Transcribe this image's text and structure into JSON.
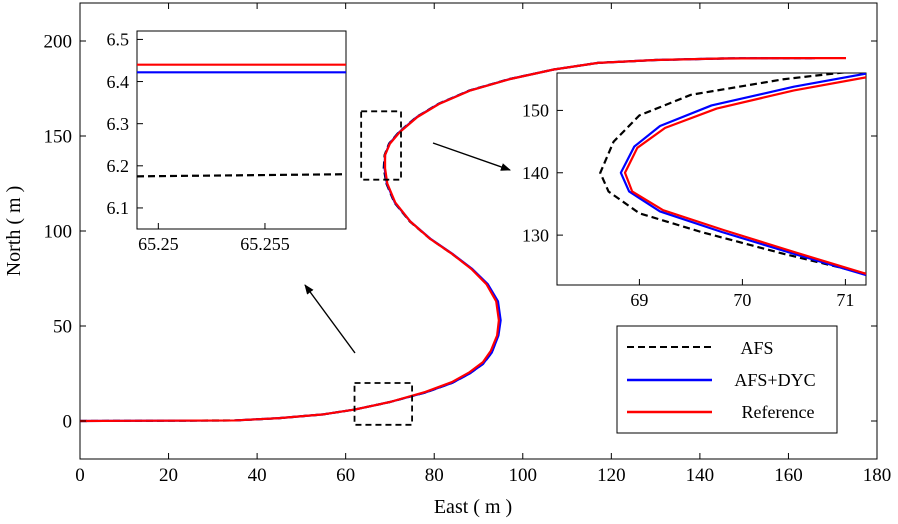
{
  "chart_data": [
    {
      "type": "line",
      "xlabel": "East ( m )",
      "ylabel": "North ( m )",
      "xlim": [
        0,
        180
      ],
      "ylim": [
        -20,
        220
      ],
      "xticks": [
        0,
        20,
        40,
        60,
        80,
        100,
        120,
        140,
        160,
        180
      ],
      "yticks": [
        0,
        50,
        100,
        150,
        200
      ],
      "grid": false,
      "legend_position": "bottom-right",
      "series": [
        {
          "name": "AFS",
          "color": "#000000",
          "style": "dashed",
          "points": [
            [
              0,
              0
            ],
            [
              35,
              0.3
            ],
            [
              45,
              1.5
            ],
            [
              55,
              3.5
            ],
            [
              62,
              6
            ],
            [
              70,
              10
            ],
            [
              78,
              15
            ],
            [
              84,
              20
            ],
            [
              88,
              25
            ],
            [
              91,
              30
            ],
            [
              93,
              36
            ],
            [
              94.4,
              45
            ],
            [
              94.9,
              53
            ],
            [
              94.3,
              63
            ],
            [
              92,
              72
            ],
            [
              88.5,
              80
            ],
            [
              84,
              88
            ],
            [
              79,
              96
            ],
            [
              74.5,
              105
            ],
            [
              71,
              115
            ],
            [
              69.2,
              125
            ],
            [
              68.6,
              133
            ],
            [
              68.8,
              140
            ],
            [
              69.8,
              146
            ],
            [
              72,
              152
            ],
            [
              76,
              160
            ],
            [
              81,
              167
            ],
            [
              88,
              174
            ],
            [
              97,
              180
            ],
            [
              107,
              185
            ],
            [
              117,
              188.5
            ],
            [
              130,
              190
            ],
            [
              145,
              190.8
            ],
            [
              160,
              191
            ],
            [
              166,
              191
            ]
          ]
        },
        {
          "name": "AFS+DYC",
          "color": "#0000ff",
          "style": "solid",
          "points": [
            [
              0,
              0
            ],
            [
              35,
              0.3
            ],
            [
              45,
              1.5
            ],
            [
              55,
              3.5
            ],
            [
              62,
              6
            ],
            [
              70,
              10
            ],
            [
              78,
              15
            ],
            [
              84,
              20
            ],
            [
              88,
              25
            ],
            [
              91,
              30
            ],
            [
              93,
              36
            ],
            [
              94.5,
              45
            ],
            [
              95,
              53
            ],
            [
              94.4,
              63
            ],
            [
              92.1,
              72
            ],
            [
              88.6,
              80
            ],
            [
              84.1,
              88
            ],
            [
              79.1,
              96
            ],
            [
              74.6,
              105
            ],
            [
              71.1,
              115
            ],
            [
              69.3,
              125
            ],
            [
              68.8,
              133
            ],
            [
              68.9,
              140
            ],
            [
              69.9,
              146
            ],
            [
              72.1,
              152
            ],
            [
              76.1,
              160
            ],
            [
              81.1,
              167
            ],
            [
              88.1,
              174
            ],
            [
              97.1,
              180
            ],
            [
              107,
              185
            ],
            [
              117,
              188.5
            ],
            [
              130,
              190
            ],
            [
              145,
              190.8
            ],
            [
              160,
              191
            ],
            [
              166,
              191
            ]
          ]
        },
        {
          "name": "Reference",
          "color": "#ff0000",
          "style": "solid",
          "points": [
            [
              0,
              0
            ],
            [
              35,
              0.3
            ],
            [
              45,
              1.5
            ],
            [
              55,
              3.5
            ],
            [
              62,
              6
            ],
            [
              70,
              10
            ],
            [
              78,
              15.3
            ],
            [
              84,
              20.5
            ],
            [
              88,
              25.7
            ],
            [
              91,
              31
            ],
            [
              92.8,
              37
            ],
            [
              94.2,
              45
            ],
            [
              94.6,
              53
            ],
            [
              94,
              63
            ],
            [
              91.8,
              72
            ],
            [
              88.4,
              80
            ],
            [
              84,
              88
            ],
            [
              79,
              96
            ],
            [
              74.6,
              105
            ],
            [
              71.2,
              115
            ],
            [
              69.4,
              125
            ],
            [
              68.9,
              133
            ],
            [
              68.9,
              140
            ],
            [
              70,
              146
            ],
            [
              72.2,
              152
            ],
            [
              76.2,
              160
            ],
            [
              81.2,
              167
            ],
            [
              88.2,
              174
            ],
            [
              97.2,
              180
            ],
            [
              107,
              185
            ],
            [
              117,
              188.5
            ],
            [
              130,
              190
            ],
            [
              145,
              190.8
            ],
            [
              160,
              191
            ],
            [
              173,
              191
            ]
          ]
        }
      ],
      "zoom_boxes": [
        {
          "x": [
            62,
            75
          ],
          "y": [
            -2,
            20
          ]
        },
        {
          "x": [
            63.5,
            72.5
          ],
          "y": [
            127,
            163
          ]
        }
      ]
    },
    {
      "type": "line",
      "inset": "upper-left",
      "xlim": [
        65.249,
        65.2588
      ],
      "ylim": [
        6.05,
        6.52
      ],
      "xticks": [
        65.25,
        65.255
      ],
      "xtick_labels": [
        "65.25",
        "65.255"
      ],
      "yticks": [
        6.1,
        6.2,
        6.3,
        6.4,
        6.5
      ],
      "ytick_labels": [
        "6.1",
        "6.2",
        "6.3",
        "6.4",
        "6.5"
      ],
      "series": [
        {
          "name": "AFS",
          "color": "#000000",
          "style": "dashed",
          "points": [
            [
              65.249,
              6.175
            ],
            [
              65.2588,
              6.18
            ]
          ]
        },
        {
          "name": "AFS+DYC",
          "color": "#0000ff",
          "style": "solid",
          "points": [
            [
              65.249,
              6.422
            ],
            [
              65.2588,
              6.422
            ]
          ]
        },
        {
          "name": "Reference",
          "color": "#ff0000",
          "style": "solid",
          "points": [
            [
              65.249,
              6.44
            ],
            [
              65.2588,
              6.44
            ]
          ]
        }
      ]
    },
    {
      "type": "line",
      "inset": "upper-right",
      "xlim": [
        68.2,
        71.2
      ],
      "ylim": [
        122,
        156
      ],
      "xticks": [
        69,
        70,
        71
      ],
      "xtick_labels": [
        "69",
        "70",
        "71"
      ],
      "yticks": [
        130,
        140,
        150
      ],
      "ytick_labels": [
        "130",
        "140",
        "150"
      ],
      "series": [
        {
          "name": "AFS",
          "color": "#000000",
          "style": "dashed",
          "points": [
            [
              71.2,
              156.5
            ],
            [
              70.4,
              155
            ],
            [
              69.5,
              152.5
            ],
            [
              69,
              149.2
            ],
            [
              68.75,
              145
            ],
            [
              68.62,
              140
            ],
            [
              68.7,
              137
            ],
            [
              69,
              133.5
            ],
            [
              69.6,
              130.5
            ],
            [
              70.4,
              127
            ],
            [
              71.2,
              123.8
            ]
          ]
        },
        {
          "name": "AFS+DYC",
          "color": "#0000ff",
          "style": "solid",
          "points": [
            [
              71.2,
              155.9
            ],
            [
              70.5,
              153.8
            ],
            [
              69.7,
              150.8
            ],
            [
              69.2,
              147.5
            ],
            [
              68.95,
              144.2
            ],
            [
              68.82,
              140
            ],
            [
              68.9,
              137
            ],
            [
              69.2,
              133.8
            ],
            [
              69.8,
              130.5
            ],
            [
              70.5,
              127
            ],
            [
              71.2,
              123.6
            ]
          ]
        },
        {
          "name": "Reference",
          "color": "#ff0000",
          "style": "solid",
          "points": [
            [
              71.2,
              155.3
            ],
            [
              70.5,
              153.2
            ],
            [
              69.75,
              150.3
            ],
            [
              69.25,
              147.2
            ],
            [
              68.98,
              144
            ],
            [
              68.86,
              140
            ],
            [
              68.93,
              137
            ],
            [
              69.23,
              134
            ],
            [
              69.82,
              130.8
            ],
            [
              70.5,
              127.3
            ],
            [
              71.2,
              123.8
            ]
          ]
        }
      ]
    }
  ]
}
